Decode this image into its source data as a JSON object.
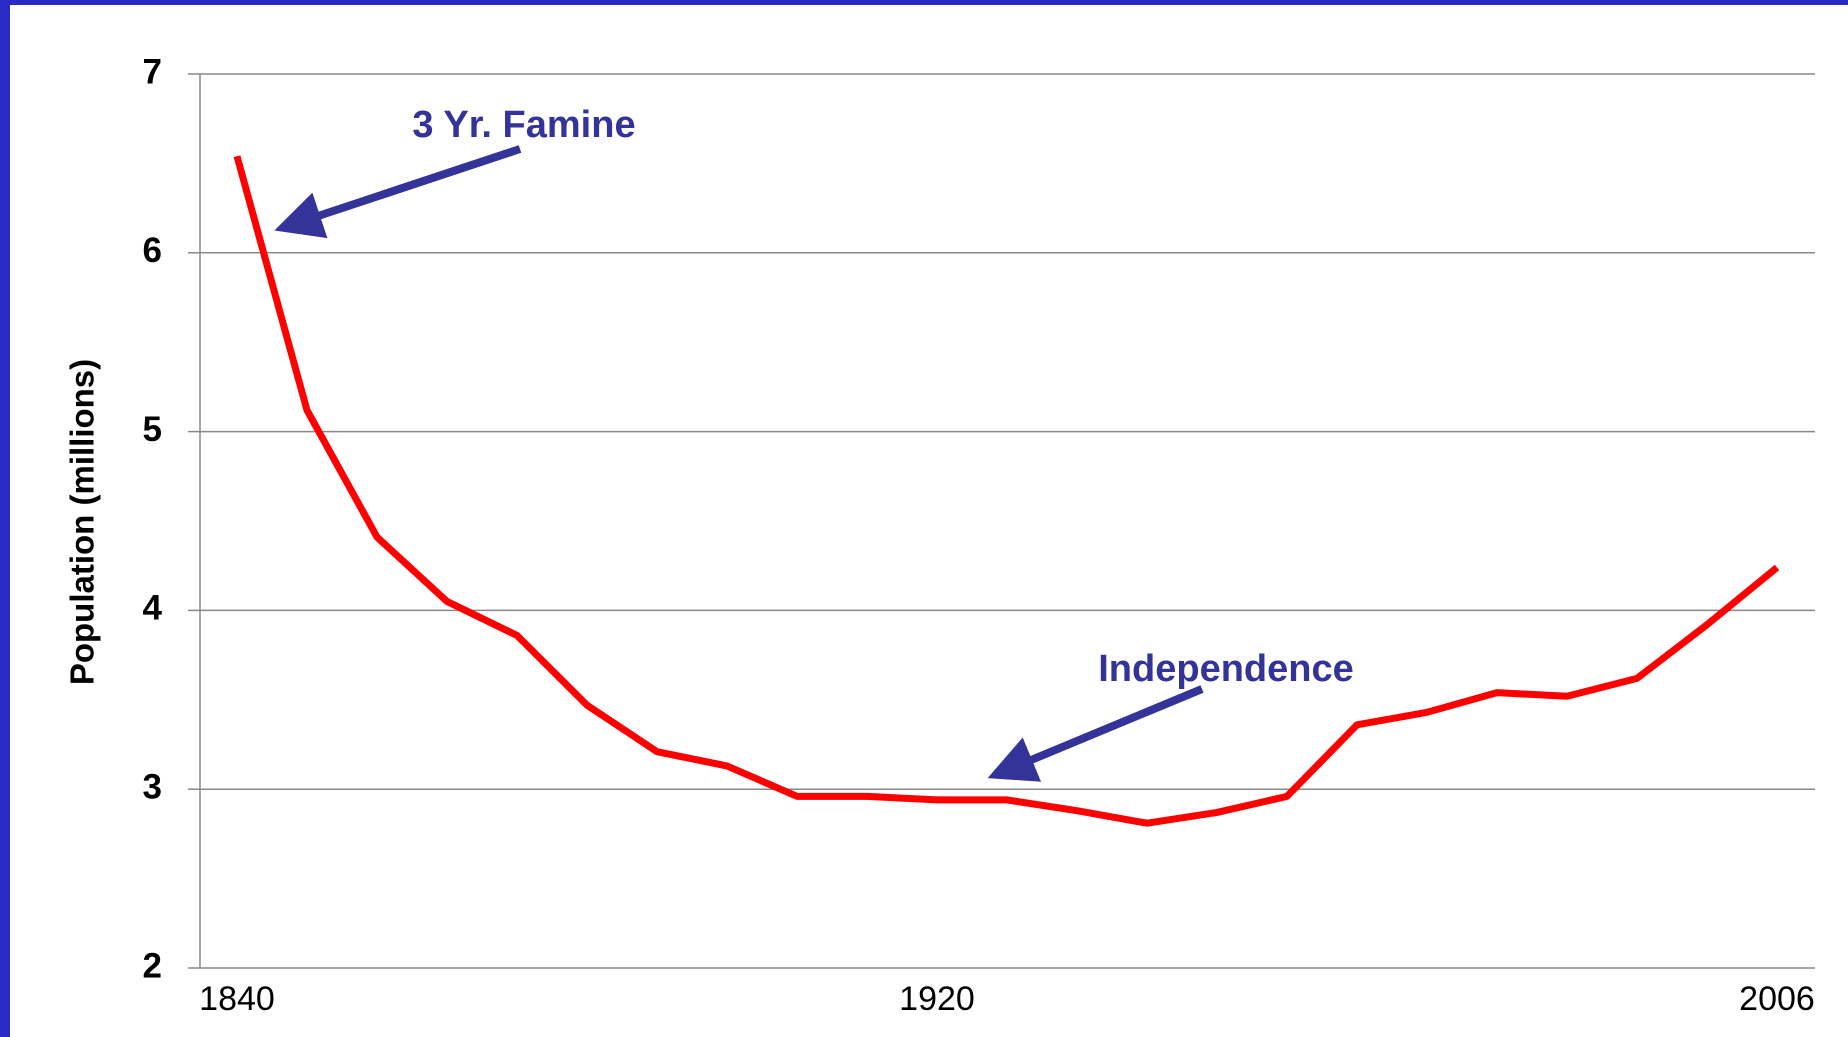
{
  "chart_data": {
    "type": "line",
    "y_label": "Population (millions)",
    "categories": [
      "1840",
      null,
      null,
      null,
      null,
      null,
      null,
      null,
      null,
      null,
      "1920",
      null,
      null,
      null,
      null,
      null,
      null,
      null,
      null,
      null,
      null,
      null,
      "2006"
    ],
    "values": [
      6.54,
      5.12,
      4.41,
      4.05,
      3.86,
      3.47,
      3.21,
      3.13,
      2.96,
      2.96,
      2.94,
      2.94,
      2.88,
      2.81,
      2.87,
      2.96,
      3.36,
      3.43,
      3.54,
      3.52,
      3.62,
      3.92,
      4.24
    ],
    "color": "#ff0000",
    "ylim": [
      2,
      7
    ],
    "yticks": [
      2,
      3,
      4,
      5,
      6,
      7
    ],
    "grid": true,
    "annotations": [
      {
        "text": "3 Yr. Famine"
      },
      {
        "text": "Independence"
      }
    ]
  }
}
